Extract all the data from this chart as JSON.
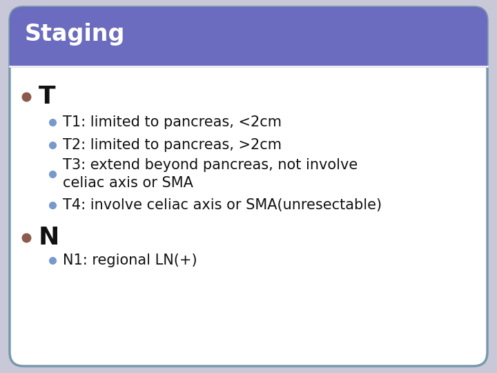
{
  "title": "Staging",
  "title_bg_color": "#6B6BBF",
  "title_text_color": "#ffffff",
  "slide_bg_color": "#ffffff",
  "border_color": "#7799aa",
  "outer_bg_color": "#c8c8d8",
  "bullet1_char": "T",
  "bullet1_color": "#8B5A4A",
  "sub_bullet_color": "#7799cc",
  "sub_bullet_texts": [
    "T1: limited to pancreas, <2cm",
    "T2: limited to pancreas, >2cm",
    "T3: extend beyond pancreas, not involve\nceliac axis or SMA",
    "T4: involve celiac axis or SMA(unresectable)"
  ],
  "bullet2_char": "N",
  "bullet2_color": "#8B5A4A",
  "sub_bullet_texts2": [
    "N1: regional LN(+)"
  ],
  "main_bullet_fontsize": 26,
  "sub_bullet_fontsize": 15,
  "title_fontsize": 24,
  "separator_color": "#ffffff",
  "text_color": "#111111"
}
